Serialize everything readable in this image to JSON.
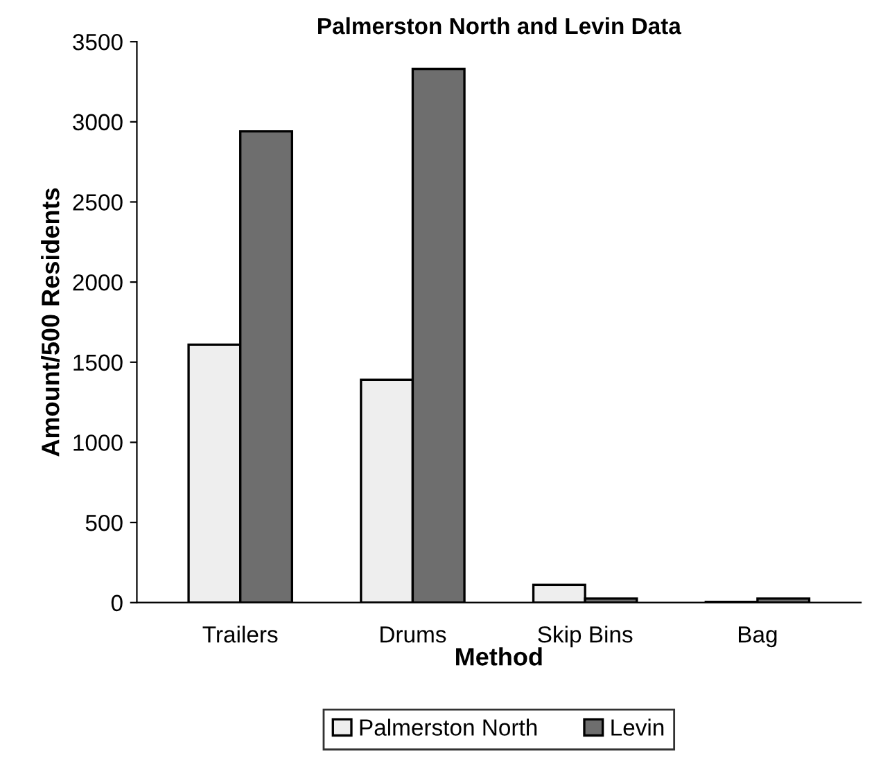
{
  "chart_data": {
    "type": "bar",
    "title": "Palmerston North and Levin Data",
    "xlabel": "Method",
    "ylabel": "Amount/500 Residents",
    "categories": [
      "Trailers",
      "Drums",
      "Skip Bins",
      "Bag"
    ],
    "series": [
      {
        "name": "Palmerston North",
        "color": "#eeeeee",
        "values": [
          1610,
          1390,
          110,
          5
        ]
      },
      {
        "name": "Levin",
        "color": "#6e6e6e",
        "values": [
          2940,
          3330,
          25,
          25
        ]
      }
    ],
    "ylim": [
      0,
      3500
    ],
    "yticks": [
      0,
      500,
      1000,
      1500,
      2000,
      2500,
      3000,
      3500
    ],
    "grid": false,
    "legend": "bottom"
  }
}
